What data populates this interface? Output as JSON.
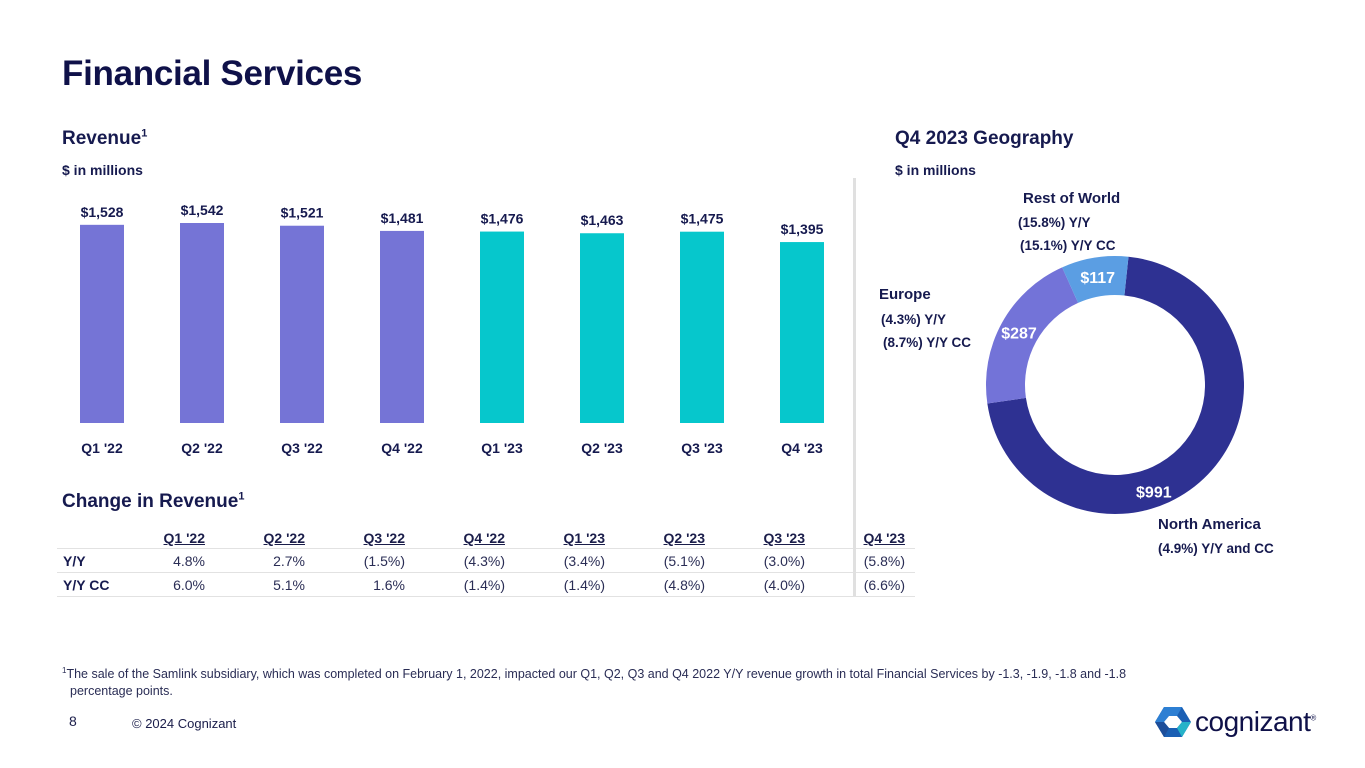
{
  "page": {
    "title": "Financial Services",
    "page_number": "8",
    "copyright": "© 2024 Cognizant",
    "brand": "cognizant",
    "brand_mark": "®"
  },
  "revenue": {
    "heading": "Revenue",
    "superscript": "1",
    "units": "$ in millions"
  },
  "change": {
    "heading": "Change in Revenue",
    "superscript": "1",
    "columns": [
      "Q1 '22",
      "Q2 '22",
      "Q3 '22",
      "Q4 '22",
      "Q1 '23",
      "Q2 '23",
      "Q3 '23",
      "Q4 '23"
    ],
    "rows": [
      {
        "label": "Y/Y",
        "values": [
          "4.8%",
          "2.7%",
          "(1.5%)",
          "(4.3%)",
          "(3.4%)",
          "(5.1%)",
          "(3.0%)",
          "(5.8%)"
        ]
      },
      {
        "label": "Y/Y CC",
        "values": [
          "6.0%",
          "5.1%",
          "1.6%",
          "(1.4%)",
          "(1.4%)",
          "(4.8%)",
          "(4.0%)",
          "(6.6%)"
        ]
      }
    ]
  },
  "geography": {
    "heading": "Q4 2023 Geography",
    "units": "$ in millions",
    "rest_of_world": {
      "name": "Rest of World",
      "yy": "(15.8%) Y/Y",
      "yycc": "(15.1%) Y/Y CC"
    },
    "europe": {
      "name": "Europe",
      "yy": "(4.3%) Y/Y",
      "yycc": "(8.7%) Y/Y CC"
    },
    "north_america": {
      "name": "North America",
      "yy": "(4.9%) Y/Y and CC"
    }
  },
  "footnote": {
    "marker": "1",
    "line1": "The sale of the Samlink subsidiary, which was completed on February 1, 2022, impacted our Q1, Q2, Q3 and Q4 2022 Y/Y revenue growth in total Financial Services by -1.3, -1.9, -1.8 and -1.8",
    "line2": "percentage points."
  },
  "colors": {
    "bar_2022": "#7574d6",
    "bar_2023": "#06c7cc",
    "north_america": "#2e3192",
    "europe": "#7373d8",
    "rest_of_world": "#5b9ee3",
    "text_dark": "#0f1149"
  },
  "chart_data": [
    {
      "type": "bar",
      "title": "Revenue",
      "xlabel": "",
      "ylabel": "$ in millions",
      "categories": [
        "Q1 '22",
        "Q2 '22",
        "Q3 '22",
        "Q4 '22",
        "Q1 '23",
        "Q2 '23",
        "Q3 '23",
        "Q4 '23"
      ],
      "values": [
        1528,
        1542,
        1521,
        1481,
        1476,
        1463,
        1475,
        1395
      ],
      "labels": [
        "$1,528",
        "$1,542",
        "$1,521",
        "$1,481",
        "$1,476",
        "$1,463",
        "$1,475",
        "$1,395"
      ],
      "grid": false
    },
    {
      "type": "pie",
      "title": "Q4 2023 Geography",
      "subtitle": "$ in millions",
      "donut": true,
      "categories": [
        "North America",
        "Europe",
        "Rest of World"
      ],
      "values": [
        991,
        287,
        117
      ],
      "labels": [
        "$991",
        "$287",
        "$117"
      ]
    }
  ]
}
